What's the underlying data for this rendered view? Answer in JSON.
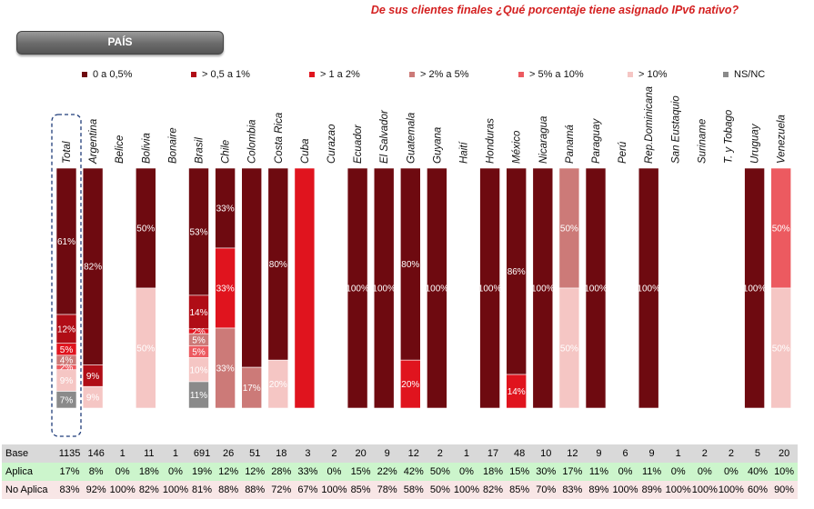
{
  "title": "De sus clientes finales ¿Qué porcentaje tiene asignado IPv6 nativo?",
  "filter_button": "PAÍS",
  "colors": {
    "title": "#d42020",
    "cat0": "#6e0a10",
    "cat1": "#b00d16",
    "cat2": "#e0141e",
    "cat3": "#cc7a78",
    "cat4": "#ec5a60",
    "cat5": "#f5c6c4",
    "cat6": "#8a8a8a"
  },
  "chart_data": {
    "type": "bar",
    "stacked": true,
    "percent": true,
    "legend_position": "top",
    "categories": [
      "Total",
      "Argentina",
      "Belice",
      "Bolivia",
      "Bonaire",
      "Brasil",
      "Chile",
      "Colombia",
      "Costa Rica",
      "Cuba",
      "Curazao",
      "Ecuador",
      "El Salvador",
      "Guatemala",
      "Guyana",
      "Haití",
      "Honduras",
      "México",
      "Nicaragua",
      "Panamá",
      "Paraguay",
      "Perú",
      "Rep.Dominicana",
      "San Eustaquio",
      "Suriname",
      "T. y Tobago",
      "Uruguay",
      "Venezuela"
    ],
    "highlighted_category": "Total",
    "series": [
      {
        "name": "0 a 0,5%",
        "values": [
          61,
          82,
          0,
          50,
          0,
          53,
          33,
          83,
          80,
          0,
          0,
          100,
          100,
          80,
          100,
          0,
          100,
          86,
          100,
          0,
          100,
          0,
          100,
          0,
          0,
          0,
          100,
          0
        ]
      },
      {
        "name": "> 0,5 a 1%",
        "values": [
          12,
          9,
          0,
          0,
          0,
          14,
          0,
          0,
          0,
          0,
          0,
          0,
          0,
          0,
          0,
          0,
          0,
          0,
          0,
          0,
          0,
          0,
          0,
          0,
          0,
          0,
          0,
          0
        ]
      },
      {
        "name": "> 1 a 2%",
        "values": [
          5,
          0,
          0,
          0,
          0,
          2,
          33,
          0,
          0,
          100,
          0,
          0,
          0,
          20,
          0,
          0,
          0,
          14,
          0,
          0,
          0,
          0,
          0,
          0,
          0,
          0,
          0,
          0
        ]
      },
      {
        "name": "> 2% a 5%",
        "values": [
          4,
          0,
          0,
          0,
          0,
          5,
          33,
          17,
          0,
          0,
          0,
          0,
          0,
          0,
          0,
          0,
          0,
          0,
          0,
          50,
          0,
          0,
          0,
          0,
          0,
          0,
          0,
          0
        ]
      },
      {
        "name": "> 5% a 10%",
        "values": [
          2,
          0,
          0,
          0,
          0,
          5,
          0,
          0,
          0,
          0,
          0,
          0,
          0,
          0,
          0,
          0,
          0,
          0,
          0,
          0,
          0,
          0,
          0,
          0,
          0,
          0,
          0,
          50
        ]
      },
      {
        "name": "> 10%",
        "values": [
          9,
          9,
          0,
          50,
          0,
          10,
          0,
          0,
          20,
          0,
          0,
          0,
          0,
          0,
          0,
          0,
          0,
          0,
          0,
          50,
          0,
          0,
          0,
          0,
          0,
          0,
          0,
          50
        ]
      },
      {
        "name": "NS/NC",
        "values": [
          7,
          0,
          0,
          0,
          0,
          11,
          0,
          0,
          0,
          0,
          0,
          0,
          0,
          0,
          0,
          0,
          0,
          0,
          0,
          0,
          0,
          0,
          0,
          0,
          0,
          0,
          0,
          0
        ]
      }
    ],
    "data_labels": [
      [
        "61%",
        "82%",
        "",
        "50%",
        "",
        "53%",
        "33%",
        "",
        "80%",
        "",
        "",
        "100%",
        "100%",
        "80%",
        "100%",
        "",
        "100%",
        "86%",
        "100%",
        "",
        "100%",
        "",
        "100%",
        "",
        "",
        "",
        "100%",
        ""
      ],
      [
        "12%",
        "9%",
        "",
        "",
        "",
        "14%",
        "",
        "",
        "",
        "",
        "",
        "",
        "",
        "",
        "",
        "",
        "",
        "",
        "",
        "",
        "",
        "",
        "",
        "",
        "",
        "",
        "",
        ""
      ],
      [
        "5%",
        "",
        "",
        "",
        "",
        "2%",
        "33%",
        "",
        "",
        "",
        "",
        "",
        "",
        "20%",
        "",
        "",
        "",
        "14%",
        "",
        "",
        "",
        "",
        "",
        "",
        "",
        "",
        "",
        ""
      ],
      [
        "4%",
        "",
        "",
        "",
        "",
        "5%",
        "33%",
        "17%",
        "",
        "",
        "",
        "",
        "",
        "",
        "",
        "",
        "",
        "",
        "",
        "50%",
        "",
        "",
        "",
        "",
        "",
        "",
        "",
        ""
      ],
      [
        "2%",
        "",
        "",
        "",
        "",
        "5%",
        "",
        "",
        "",
        "",
        "",
        "",
        "",
        "",
        "",
        "",
        "",
        "",
        "",
        "",
        "",
        "",
        "",
        "",
        "",
        "",
        "",
        "50%"
      ],
      [
        "9%",
        "9%",
        "",
        "50%",
        "",
        "10%",
        "",
        "",
        "20%",
        "",
        "",
        "",
        "",
        "",
        "",
        "",
        "",
        "",
        "",
        "50%",
        "",
        "",
        "",
        "",
        "",
        "",
        "",
        "50%"
      ],
      [
        "7%",
        "",
        "",
        "",
        "",
        "11%",
        "",
        "",
        "",
        "",
        "",
        "",
        "",
        "",
        "",
        "",
        "",
        "",
        "",
        "",
        "",
        "",
        "",
        "",
        "",
        "",
        "",
        ""
      ]
    ],
    "table": {
      "rows": [
        {
          "label": "Base",
          "values": [
            "1135",
            "146",
            "1",
            "11",
            "1",
            "691",
            "26",
            "51",
            "18",
            "3",
            "2",
            "20",
            "9",
            "12",
            "2",
            "1",
            "17",
            "48",
            "10",
            "12",
            "9",
            "6",
            "9",
            "1",
            "2",
            "2",
            "5",
            "20"
          ]
        },
        {
          "label": "Aplica",
          "values": [
            "17%",
            "8%",
            "0%",
            "18%",
            "0%",
            "19%",
            "12%",
            "12%",
            "28%",
            "33%",
            "0%",
            "15%",
            "22%",
            "42%",
            "50%",
            "0%",
            "18%",
            "15%",
            "30%",
            "17%",
            "11%",
            "0%",
            "11%",
            "0%",
            "0%",
            "0%",
            "40%",
            "10%"
          ]
        },
        {
          "label": "No Aplica",
          "values": [
            "83%",
            "92%",
            "100%",
            "82%",
            "100%",
            "81%",
            "88%",
            "88%",
            "72%",
            "67%",
            "100%",
            "85%",
            "78%",
            "58%",
            "50%",
            "100%",
            "82%",
            "85%",
            "70%",
            "83%",
            "89%",
            "100%",
            "89%",
            "100%",
            "100%",
            "100%",
            "60%",
            "90%"
          ]
        }
      ]
    }
  }
}
